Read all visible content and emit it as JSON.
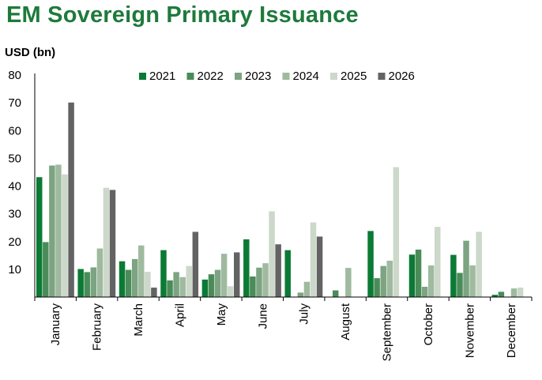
{
  "chart_data": {
    "type": "bar",
    "title": "EM Sovereign Primary Issuance",
    "ylabel": "USD (bn)",
    "xlabel": "",
    "ylim": [
      0,
      80
    ],
    "yticks": [
      10,
      20,
      30,
      40,
      50,
      60,
      70,
      80
    ],
    "legend_position": "top-center",
    "grid": false,
    "categories": [
      "January",
      "February",
      "March",
      "April",
      "May",
      "June",
      "July",
      "August",
      "September",
      "October",
      "November",
      "December"
    ],
    "series": [
      {
        "name": "2021",
        "color": "#0b7a35",
        "values": [
          43.2,
          10.1,
          12.9,
          16.9,
          6.3,
          20.8,
          16.9,
          0,
          23.8,
          15.3,
          15.2,
          0.8
        ]
      },
      {
        "name": "2022",
        "color": "#4a8c58",
        "values": [
          19.8,
          9.0,
          9.8,
          6.0,
          8.2,
          7.4,
          0,
          2.4,
          6.8,
          17.1,
          8.7,
          1.9
        ]
      },
      {
        "name": "2023",
        "color": "#7ca482",
        "values": [
          47.4,
          10.7,
          13.7,
          9.0,
          9.8,
          10.6,
          1.6,
          0,
          11.2,
          3.7,
          20.3,
          0
        ]
      },
      {
        "name": "2024",
        "color": "#9fba9f",
        "values": [
          47.7,
          17.5,
          18.6,
          7.2,
          15.6,
          12.2,
          5.5,
          10.5,
          13.1,
          11.4,
          11.4,
          3.1
        ]
      },
      {
        "name": "2025",
        "color": "#ccd8c9",
        "values": [
          44.2,
          39.4,
          9.1,
          11.2,
          3.9,
          30.9,
          26.9,
          0,
          46.8,
          25.3,
          23.5,
          3.4
        ]
      },
      {
        "name": "2026",
        "color": "#636363",
        "values": [
          70.1,
          38.6,
          3.4,
          23.5,
          16.1,
          19.0,
          21.8,
          0,
          0,
          0,
          0,
          0
        ]
      }
    ]
  }
}
